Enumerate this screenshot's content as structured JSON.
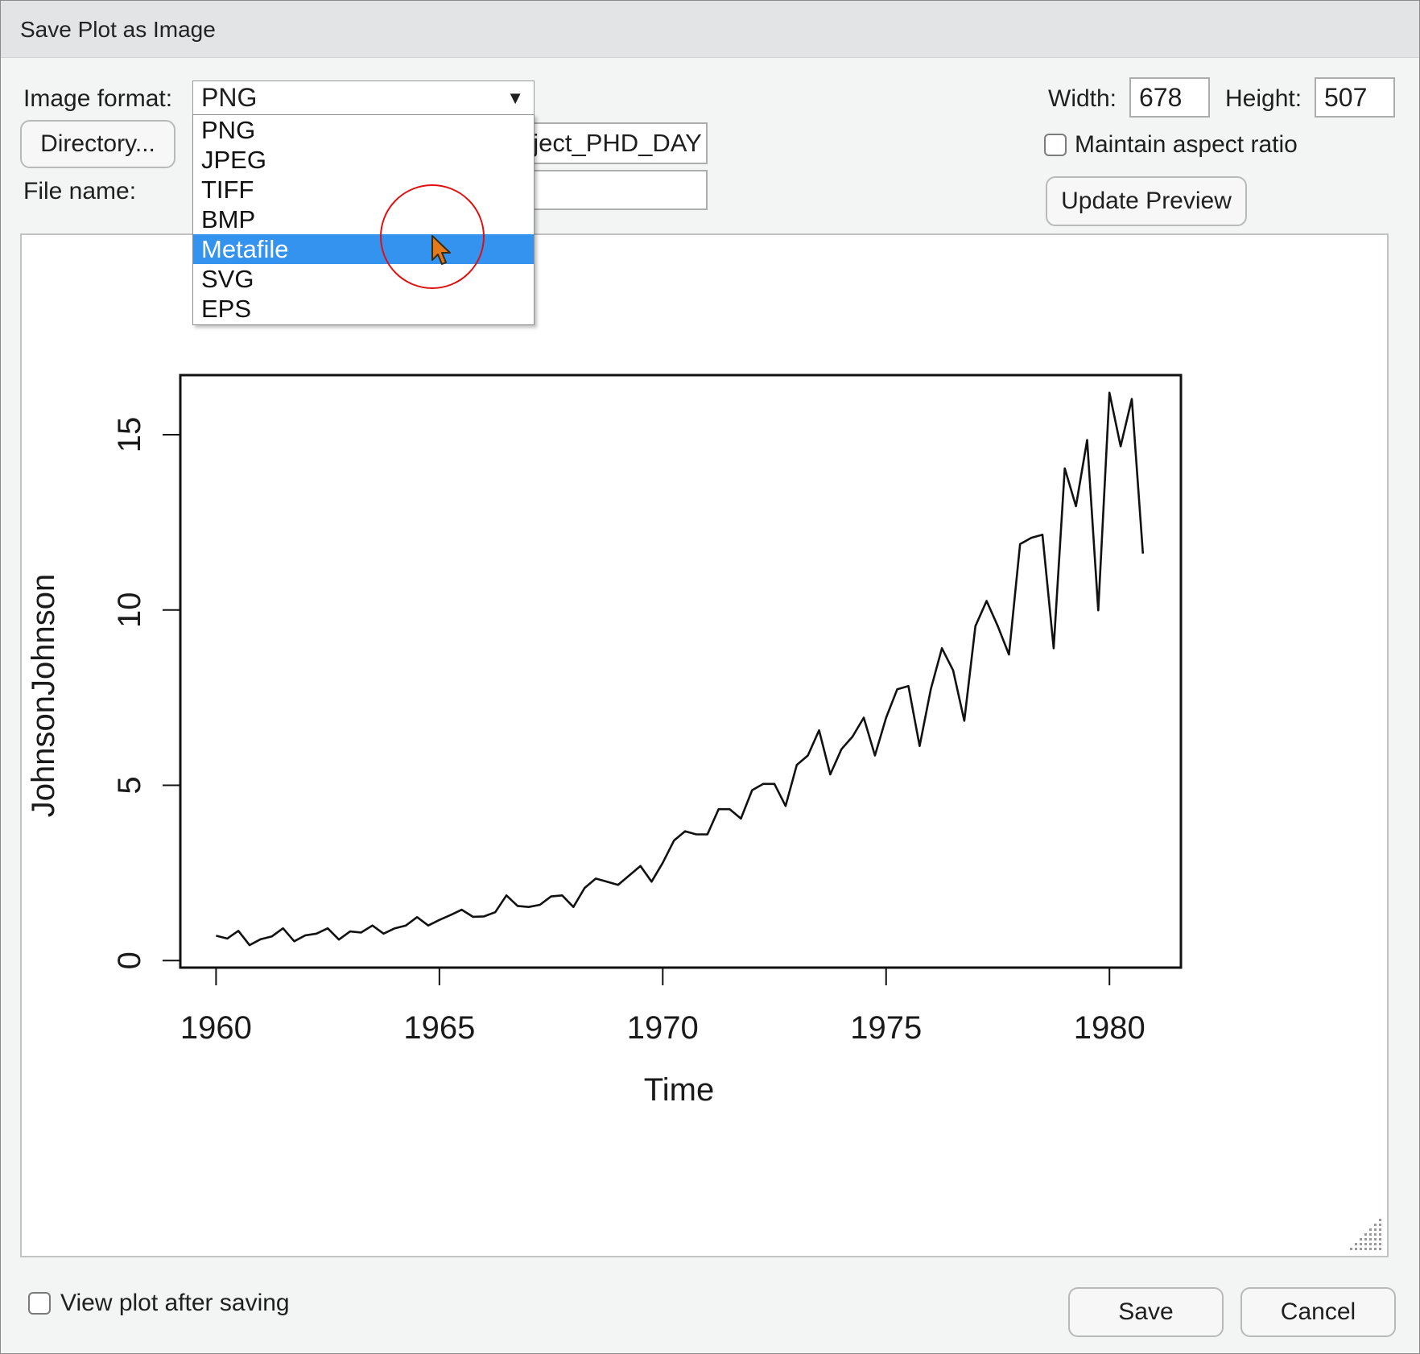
{
  "window": {
    "title": "Save Plot as Image"
  },
  "format": {
    "label": "Image format:",
    "selected": "PNG",
    "options": [
      "PNG",
      "JPEG",
      "TIFF",
      "BMP",
      "Metafile",
      "SVG",
      "EPS"
    ],
    "highlighted": "Metafile",
    "highlight_color": "#3393ee"
  },
  "directory": {
    "button_label": "Directory...",
    "path_visible": "oject_PHD_DAY"
  },
  "filename": {
    "label": "File name:",
    "value": ""
  },
  "size": {
    "width_label": "Width:",
    "width_value": "678",
    "height_label": "Height:",
    "height_value": "507"
  },
  "aspect": {
    "label": "Maintain aspect ratio",
    "checked": false
  },
  "update_preview": {
    "label": "Update Preview"
  },
  "view_after": {
    "label": "View plot after saving",
    "checked": false
  },
  "buttons": {
    "save": "Save",
    "cancel": "Cancel"
  },
  "icons": {
    "dropdown_arrow": "triangle-down-icon",
    "cursor": "pointer-cursor-icon",
    "resize": "resize-grip-icon"
  },
  "chart_data": {
    "type": "line",
    "title": "",
    "xlabel": "Time",
    "ylabel": "JohnsonJohnson",
    "xlim": [
      1959.2,
      1981.6
    ],
    "ylim": [
      -0.2,
      16.7
    ],
    "x_ticks": [
      1960,
      1965,
      1970,
      1975,
      1980
    ],
    "y_ticks": [
      0,
      5,
      10,
      15
    ],
    "line_color": "#111111",
    "series": [
      {
        "start": 1960.0,
        "frequency": 4,
        "values": [
          0.71,
          0.63,
          0.85,
          0.44,
          0.61,
          0.69,
          0.92,
          0.55,
          0.72,
          0.77,
          0.92,
          0.6,
          0.83,
          0.8,
          1.0,
          0.77,
          0.92,
          1.0,
          1.24,
          1.0,
          1.16,
          1.3,
          1.45,
          1.25,
          1.26,
          1.38,
          1.86,
          1.56,
          1.53,
          1.59,
          1.83,
          1.86,
          1.53,
          2.07,
          2.34,
          2.25,
          2.16,
          2.43,
          2.7,
          2.25,
          2.79,
          3.42,
          3.69,
          3.6,
          3.6,
          4.32,
          4.32,
          4.05,
          4.86,
          5.04,
          5.04,
          4.41,
          5.58,
          5.85,
          6.57,
          5.31,
          6.03,
          6.39,
          6.93,
          5.85,
          6.93,
          7.74,
          7.83,
          6.12,
          7.74,
          8.91,
          8.28,
          6.84,
          9.54,
          10.26,
          9.54,
          8.73,
          11.88,
          12.06,
          12.15,
          8.91,
          14.04,
          12.96,
          14.85,
          9.99,
          16.2,
          14.67,
          16.02,
          11.61
        ]
      }
    ]
  }
}
